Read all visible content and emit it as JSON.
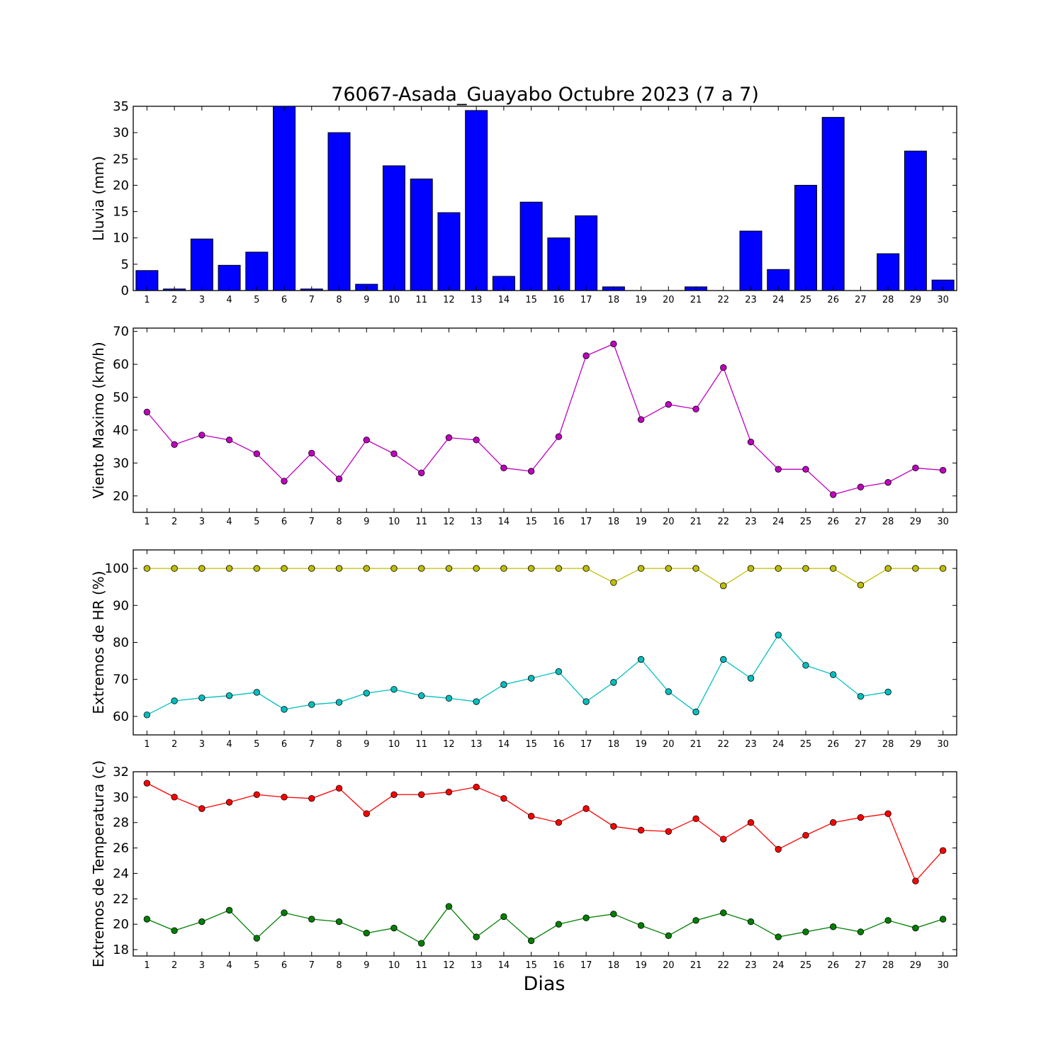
{
  "chart_data": [
    {
      "type": "bar",
      "title": "76067-Asada_Guayabo Octubre 2023  (7 a 7)",
      "ylabel": "Lluvia (mm)",
      "xlabel": "",
      "ylim": [
        0,
        35
      ],
      "yticks": [
        0,
        5,
        10,
        15,
        20,
        25,
        30,
        35
      ],
      "x": [
        1,
        2,
        3,
        4,
        5,
        6,
        7,
        8,
        9,
        10,
        11,
        12,
        13,
        14,
        15,
        16,
        17,
        18,
        19,
        20,
        21,
        22,
        23,
        24,
        25,
        26,
        27,
        28,
        29,
        30
      ],
      "color": "#0000ff",
      "series": [
        {
          "values": [
            3.8,
            0.3,
            9.8,
            4.8,
            7.3,
            35.0,
            0.3,
            30.0,
            1.2,
            23.7,
            21.2,
            14.8,
            34.2,
            2.7,
            16.8,
            10.0,
            14.2,
            0.7,
            0.0,
            0.0,
            0.7,
            0.0,
            11.3,
            4.0,
            20.0,
            32.9,
            0.0,
            7.0,
            26.5,
            2.0
          ]
        }
      ]
    },
    {
      "type": "line",
      "title": "",
      "ylabel": "Viento Maximo (km/h)",
      "xlabel": "",
      "ylim": [
        15,
        71
      ],
      "yticks": [
        20,
        30,
        40,
        50,
        60,
        70
      ],
      "x": [
        1,
        2,
        3,
        4,
        5,
        6,
        7,
        8,
        9,
        10,
        11,
        12,
        13,
        14,
        15,
        16,
        17,
        18,
        19,
        20,
        21,
        22,
        23,
        24,
        25,
        26,
        27,
        28,
        29,
        30
      ],
      "series": [
        {
          "color": "#bf00bf",
          "values": [
            45.5,
            35.6,
            38.5,
            37.0,
            32.8,
            24.5,
            33.0,
            25.2,
            37.0,
            32.8,
            27.0,
            37.7,
            37.0,
            28.5,
            27.5,
            38.0,
            62.6,
            66.2,
            43.2,
            47.8,
            46.4,
            59.0,
            36.4,
            28.1,
            28.1,
            20.4,
            22.7,
            24.1,
            28.5,
            27.8
          ]
        }
      ]
    },
    {
      "type": "line",
      "title": "",
      "ylabel": "Extremos de HR (%)",
      "xlabel": "",
      "ylim": [
        55,
        105
      ],
      "yticks": [
        60,
        70,
        80,
        90,
        100
      ],
      "x": [
        1,
        2,
        3,
        4,
        5,
        6,
        7,
        8,
        9,
        10,
        11,
        12,
        13,
        14,
        15,
        16,
        17,
        18,
        19,
        20,
        21,
        22,
        23,
        24,
        25,
        26,
        27,
        28,
        29,
        30
      ],
      "series": [
        {
          "color": "#bfbf00",
          "values": [
            100,
            100,
            100,
            100,
            100,
            100,
            100,
            100,
            100,
            100,
            100,
            100,
            100,
            100,
            100,
            100,
            100,
            96.2,
            100,
            100,
            100,
            95.3,
            100,
            100,
            100,
            100,
            95.5,
            100,
            100,
            100
          ]
        },
        {
          "color": "#00bfbf",
          "values": [
            60.4,
            64.2,
            65.0,
            65.6,
            66.5,
            61.9,
            63.2,
            63.8,
            66.3,
            67.3,
            65.6,
            64.9,
            64.0,
            68.6,
            70.3,
            72.1,
            64.0,
            69.2,
            75.4,
            66.7,
            61.2,
            75.4,
            70.3,
            82.0,
            73.8,
            71.3,
            65.4,
            66.6,
            null,
            null
          ]
        }
      ]
    },
    {
      "type": "line",
      "title": "",
      "ylabel": "Extremos de Temperatura (c)",
      "xlabel": "Dias",
      "ylim": [
        17.5,
        32
      ],
      "yticks": [
        18,
        20,
        22,
        24,
        26,
        28,
        30,
        32
      ],
      "x": [
        1,
        2,
        3,
        4,
        5,
        6,
        7,
        8,
        9,
        10,
        11,
        12,
        13,
        14,
        15,
        16,
        17,
        18,
        19,
        20,
        21,
        22,
        23,
        24,
        25,
        26,
        27,
        28,
        29,
        30
      ],
      "series": [
        {
          "color": "#ff0000",
          "values": [
            31.1,
            30.0,
            29.1,
            29.6,
            30.2,
            30.0,
            29.9,
            30.7,
            28.7,
            30.2,
            30.2,
            30.4,
            30.8,
            29.9,
            28.5,
            28.0,
            29.1,
            27.7,
            27.4,
            27.3,
            28.3,
            26.7,
            28.0,
            25.9,
            27.0,
            28.0,
            28.4,
            28.7,
            23.4,
            25.8
          ]
        },
        {
          "color": "#007f00",
          "values": [
            20.4,
            19.5,
            20.2,
            21.1,
            18.9,
            20.9,
            20.4,
            20.2,
            19.3,
            19.7,
            18.5,
            21.4,
            19.0,
            20.6,
            18.7,
            20.0,
            20.5,
            20.8,
            19.9,
            19.1,
            20.3,
            20.9,
            20.2,
            19.0,
            19.4,
            19.8,
            19.4,
            20.3,
            19.7,
            20.4
          ]
        }
      ]
    }
  ]
}
